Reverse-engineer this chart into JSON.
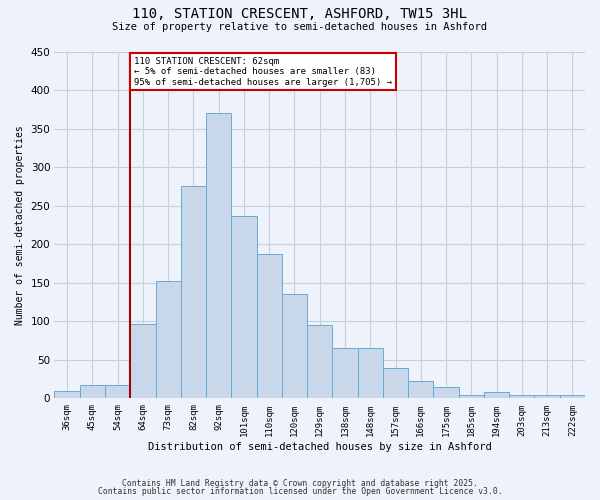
{
  "title": "110, STATION CRESCENT, ASHFORD, TW15 3HL",
  "subtitle": "Size of property relative to semi-detached houses in Ashford",
  "xlabel": "Distribution of semi-detached houses by size in Ashford",
  "ylabel": "Number of semi-detached properties",
  "bar_labels": [
    "36sqm",
    "45sqm",
    "54sqm",
    "64sqm",
    "73sqm",
    "82sqm",
    "92sqm",
    "101sqm",
    "110sqm",
    "120sqm",
    "129sqm",
    "138sqm",
    "148sqm",
    "157sqm",
    "166sqm",
    "175sqm",
    "185sqm",
    "194sqm",
    "203sqm",
    "213sqm",
    "222sqm"
  ],
  "bar_values": [
    10,
    18,
    18,
    97,
    152,
    275,
    370,
    237,
    187,
    135,
    95,
    66,
    65,
    40,
    22,
    15,
    5,
    9,
    5,
    5,
    5
  ],
  "bar_color": "#c8d8ea",
  "bar_edge_color": "#6aaad4",
  "vline_x_index": 3,
  "vline_color": "#aa0000",
  "annotation_text": "110 STATION CRESCENT: 62sqm\n← 5% of semi-detached houses are smaller (83)\n95% of semi-detached houses are larger (1,705) →",
  "annotation_box_color": "#cc0000",
  "ylim": [
    0,
    450
  ],
  "yticks": [
    0,
    50,
    100,
    150,
    200,
    250,
    300,
    350,
    400,
    450
  ],
  "footnote1": "Contains HM Land Registry data © Crown copyright and database right 2025.",
  "footnote2": "Contains public sector information licensed under the Open Government Licence v3.0.",
  "bg_color": "#eef2fa",
  "plot_bg_color": "#eef2fa",
  "grid_color": "#c8d0e0"
}
